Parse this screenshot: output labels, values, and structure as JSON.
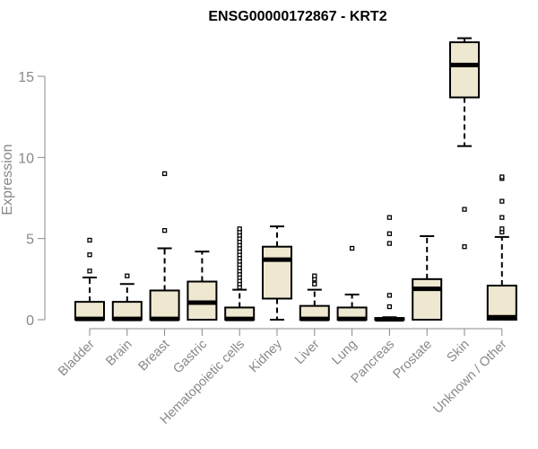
{
  "chart_data": {
    "type": "box",
    "title": "ENSG00000172867 - KRT2",
    "ylabel": "Expression",
    "xlabel": "",
    "ylim": [
      0,
      18
    ],
    "yticks": [
      0,
      5,
      10,
      15
    ],
    "ytick_labels": [
      "0",
      "5",
      "10",
      "15"
    ],
    "box_fill": "#efe8d0",
    "box_stroke": "#000000",
    "categories": [
      "Bladder",
      "Brain",
      "Breast",
      "Gastric",
      "Hematopoietic cells",
      "Kidney",
      "Liver",
      "Lung",
      "Pancreas",
      "Prostate",
      "Skin",
      "Unknown / Other"
    ],
    "boxes": [
      {
        "min": 0,
        "q1": 0,
        "median": 0.05,
        "q3": 1.1,
        "max": 2.6,
        "outliers": [
          3.0,
          4.0,
          4.9
        ]
      },
      {
        "min": 0,
        "q1": 0,
        "median": 0.05,
        "q3": 1.1,
        "max": 2.2,
        "outliers": [
          2.7
        ]
      },
      {
        "min": 0,
        "q1": 0,
        "median": 0.05,
        "q3": 1.8,
        "max": 4.4,
        "outliers": [
          5.5,
          9.0
        ]
      },
      {
        "min": 0,
        "q1": 0,
        "median": 1.05,
        "q3": 2.35,
        "max": 4.2,
        "outliers": []
      },
      {
        "min": 0,
        "q1": 0,
        "median": 0.05,
        "q3": 0.75,
        "max": 1.85,
        "outliers": [
          2.0,
          2.2,
          2.4,
          2.6,
          2.8,
          3.0,
          3.2,
          3.4,
          3.6,
          3.8,
          4.0,
          4.2,
          4.4,
          4.6,
          4.8,
          5.0,
          5.2,
          5.4,
          5.6
        ]
      },
      {
        "min": 0,
        "q1": 1.3,
        "median": 3.7,
        "q3": 4.5,
        "max": 5.75,
        "outliers": []
      },
      {
        "min": 0,
        "q1": 0,
        "median": 0.05,
        "q3": 0.85,
        "max": 1.85,
        "outliers": [
          2.2,
          2.5,
          2.7
        ]
      },
      {
        "min": 0,
        "q1": 0,
        "median": 0.05,
        "q3": 0.75,
        "max": 1.55,
        "outliers": [
          4.4
        ]
      },
      {
        "min": 0,
        "q1": 0,
        "median": 0.02,
        "q3": 0.1,
        "max": 0.15,
        "outliers": [
          0.8,
          1.5,
          4.7,
          5.3,
          6.3
        ]
      },
      {
        "min": 0,
        "q1": 0,
        "median": 1.9,
        "q3": 2.5,
        "max": 5.15,
        "outliers": []
      },
      {
        "min": 10.7,
        "q1": 13.7,
        "median": 15.7,
        "q3": 17.1,
        "max": 17.35,
        "outliers": [
          4.5,
          6.8
        ]
      },
      {
        "min": 0,
        "q1": 0,
        "median": 0.15,
        "q3": 2.1,
        "max": 5.1,
        "outliers": [
          5.4,
          5.6,
          6.3,
          7.3,
          8.7,
          8.8
        ]
      }
    ],
    "grid": false,
    "legend": "none"
  }
}
